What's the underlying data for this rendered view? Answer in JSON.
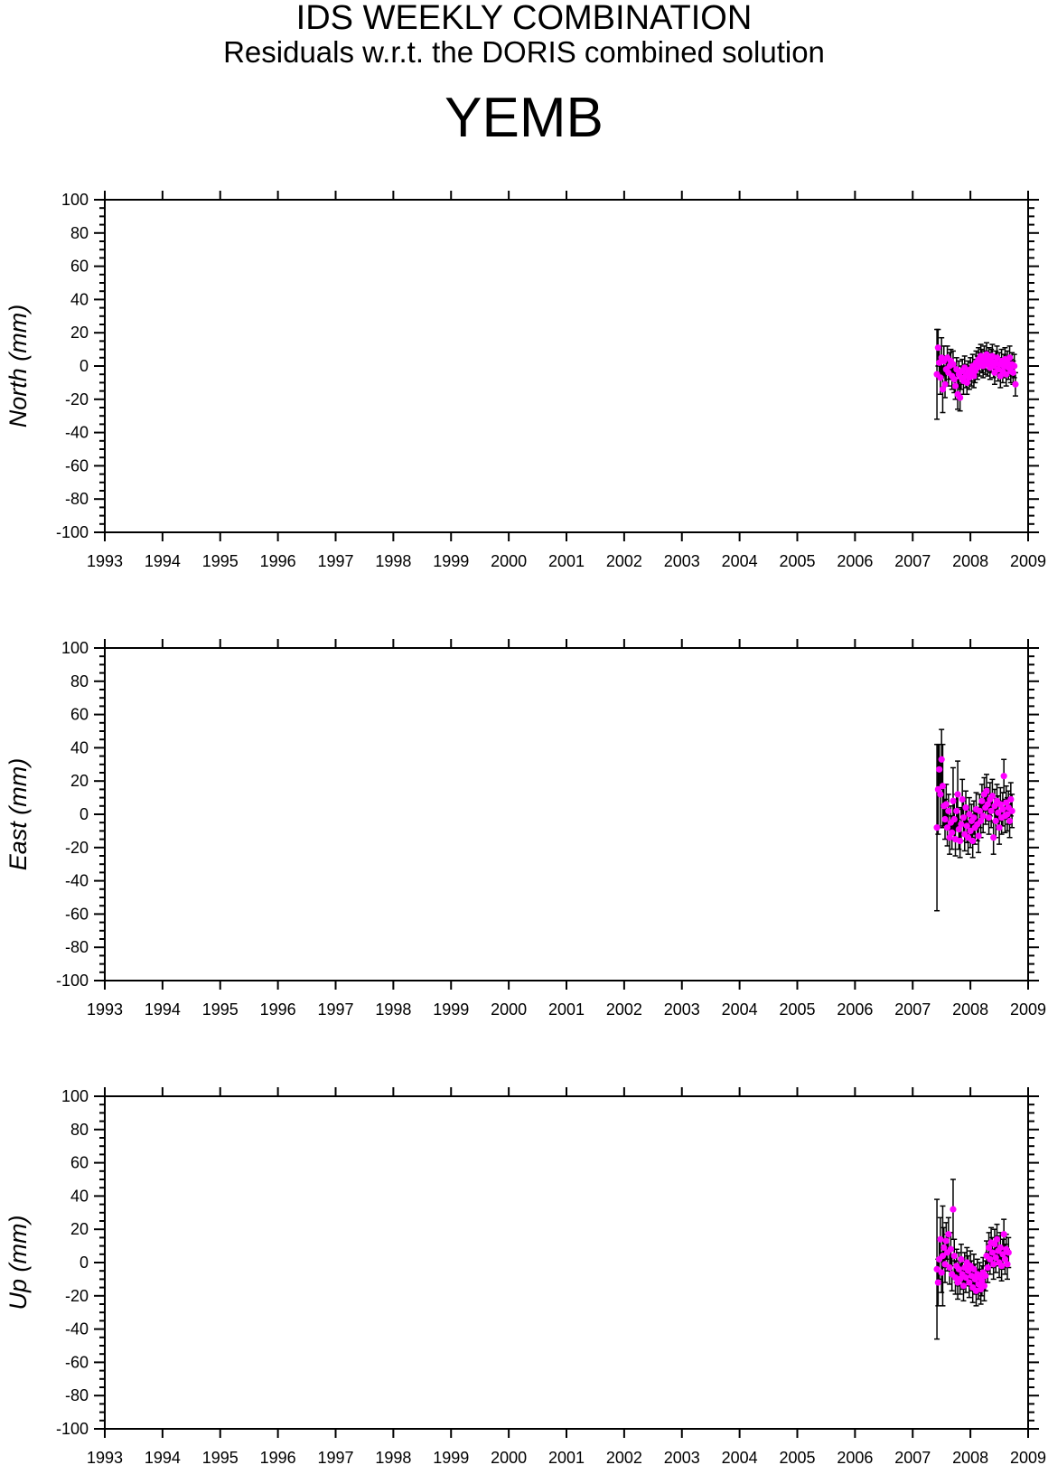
{
  "header": {
    "title": "IDS WEEKLY COMBINATION",
    "subtitle": "Residuals w.r.t. the DORIS combined solution",
    "station": "YEMB"
  },
  "colors": {
    "point": "#ff00ff",
    "errorbar": "#000000",
    "axis": "#000000"
  },
  "chart_data": [
    {
      "type": "scatter",
      "ylabel": "North (mm)",
      "xlim": [
        1993,
        2009
      ],
      "ylim": [
        -100,
        100
      ],
      "x_ticks": [
        "1993",
        "1994",
        "1995",
        "1996",
        "1997",
        "1998",
        "1999",
        "2000",
        "2001",
        "2002",
        "2003",
        "2004",
        "2005",
        "2006",
        "2007",
        "2008",
        "2009"
      ],
      "y_ticks": [
        "100",
        "80",
        "60",
        "40",
        "20",
        "0",
        "-20",
        "-40",
        "-60",
        "-80",
        "-100"
      ],
      "points": [
        {
          "x": 2007.42,
          "y": -5,
          "err": 27
        },
        {
          "x": 2007.44,
          "y": 11,
          "err": 11
        },
        {
          "x": 2007.46,
          "y": 2,
          "err": 9
        },
        {
          "x": 2007.48,
          "y": -7,
          "err": 10
        },
        {
          "x": 2007.5,
          "y": 5,
          "err": 12
        },
        {
          "x": 2007.52,
          "y": -14,
          "err": 14
        },
        {
          "x": 2007.54,
          "y": 3,
          "err": 9
        },
        {
          "x": 2007.56,
          "y": -11,
          "err": 8
        },
        {
          "x": 2007.58,
          "y": -2,
          "err": 8
        },
        {
          "x": 2007.6,
          "y": 5,
          "err": 7
        },
        {
          "x": 2007.62,
          "y": -4,
          "err": 8
        },
        {
          "x": 2007.64,
          "y": 0,
          "err": 8
        },
        {
          "x": 2007.66,
          "y": 3,
          "err": 7
        },
        {
          "x": 2007.68,
          "y": -6,
          "err": 8
        },
        {
          "x": 2007.7,
          "y": 1,
          "err": 8
        },
        {
          "x": 2007.72,
          "y": -8,
          "err": 8
        },
        {
          "x": 2007.74,
          "y": -12,
          "err": 8
        },
        {
          "x": 2007.76,
          "y": -2,
          "err": 7
        },
        {
          "x": 2007.78,
          "y": -17,
          "err": 9
        },
        {
          "x": 2007.8,
          "y": -5,
          "err": 8
        },
        {
          "x": 2007.82,
          "y": -19,
          "err": 8
        },
        {
          "x": 2007.84,
          "y": -7,
          "err": 7
        },
        {
          "x": 2007.86,
          "y": -3,
          "err": 7
        },
        {
          "x": 2007.88,
          "y": -9,
          "err": 8
        },
        {
          "x": 2007.9,
          "y": -1,
          "err": 7
        },
        {
          "x": 2007.92,
          "y": -6,
          "err": 7
        },
        {
          "x": 2007.94,
          "y": -10,
          "err": 7
        },
        {
          "x": 2007.96,
          "y": -4,
          "err": 7
        },
        {
          "x": 2007.98,
          "y": -7,
          "err": 7
        },
        {
          "x": 2008.0,
          "y": -2,
          "err": 7
        },
        {
          "x": 2008.02,
          "y": -5,
          "err": 7
        },
        {
          "x": 2008.04,
          "y": 0,
          "err": 7
        },
        {
          "x": 2008.06,
          "y": -6,
          "err": 7
        },
        {
          "x": 2008.08,
          "y": -3,
          "err": 7
        },
        {
          "x": 2008.1,
          "y": 2,
          "err": 7
        },
        {
          "x": 2008.12,
          "y": -1,
          "err": 7
        },
        {
          "x": 2008.14,
          "y": 4,
          "err": 7
        },
        {
          "x": 2008.16,
          "y": 1,
          "err": 7
        },
        {
          "x": 2008.18,
          "y": 6,
          "err": 7
        },
        {
          "x": 2008.2,
          "y": 3,
          "err": 7
        },
        {
          "x": 2008.22,
          "y": 0,
          "err": 7
        },
        {
          "x": 2008.24,
          "y": 5,
          "err": 7
        },
        {
          "x": 2008.26,
          "y": 2,
          "err": 7
        },
        {
          "x": 2008.28,
          "y": 7,
          "err": 7
        },
        {
          "x": 2008.3,
          "y": 1,
          "err": 7
        },
        {
          "x": 2008.32,
          "y": 4,
          "err": 7
        },
        {
          "x": 2008.34,
          "y": -1,
          "err": 7
        },
        {
          "x": 2008.36,
          "y": 3,
          "err": 7
        },
        {
          "x": 2008.38,
          "y": 6,
          "err": 7
        },
        {
          "x": 2008.4,
          "y": 0,
          "err": 7
        },
        {
          "x": 2008.42,
          "y": -4,
          "err": 7
        },
        {
          "x": 2008.44,
          "y": 2,
          "err": 7
        },
        {
          "x": 2008.46,
          "y": 5,
          "err": 7
        },
        {
          "x": 2008.48,
          "y": -2,
          "err": 7
        },
        {
          "x": 2008.5,
          "y": 1,
          "err": 7
        },
        {
          "x": 2008.52,
          "y": -6,
          "err": 7
        },
        {
          "x": 2008.54,
          "y": 3,
          "err": 7
        },
        {
          "x": 2008.56,
          "y": -3,
          "err": 7
        },
        {
          "x": 2008.58,
          "y": 0,
          "err": 7
        },
        {
          "x": 2008.6,
          "y": 4,
          "err": 7
        },
        {
          "x": 2008.62,
          "y": -5,
          "err": 7
        },
        {
          "x": 2008.64,
          "y": 2,
          "err": 7
        },
        {
          "x": 2008.66,
          "y": -1,
          "err": 7
        },
        {
          "x": 2008.68,
          "y": 5,
          "err": 7
        },
        {
          "x": 2008.7,
          "y": -3,
          "err": 7
        },
        {
          "x": 2008.72,
          "y": 1,
          "err": 7
        },
        {
          "x": 2008.74,
          "y": -4,
          "err": 7
        },
        {
          "x": 2008.76,
          "y": 0,
          "err": 7
        },
        {
          "x": 2008.78,
          "y": -11,
          "err": 7
        }
      ]
    },
    {
      "type": "scatter",
      "ylabel": "East (mm)",
      "xlim": [
        1993,
        2009
      ],
      "ylim": [
        -100,
        100
      ],
      "x_ticks": [
        "1993",
        "1994",
        "1995",
        "1996",
        "1997",
        "1998",
        "1999",
        "2000",
        "2001",
        "2002",
        "2003",
        "2004",
        "2005",
        "2006",
        "2007",
        "2008",
        "2009"
      ],
      "y_ticks": [
        "100",
        "80",
        "60",
        "40",
        "20",
        "0",
        "-20",
        "-40",
        "-60",
        "-80",
        "-100"
      ],
      "points": [
        {
          "x": 2007.42,
          "y": -8,
          "err": 50
        },
        {
          "x": 2007.44,
          "y": 15,
          "err": 27
        },
        {
          "x": 2007.46,
          "y": 27,
          "err": 15
        },
        {
          "x": 2007.48,
          "y": 12,
          "err": 20
        },
        {
          "x": 2007.5,
          "y": 33,
          "err": 18
        },
        {
          "x": 2007.52,
          "y": 17,
          "err": 25
        },
        {
          "x": 2007.54,
          "y": 5,
          "err": 12
        },
        {
          "x": 2007.56,
          "y": -3,
          "err": 12
        },
        {
          "x": 2007.58,
          "y": 6,
          "err": 12
        },
        {
          "x": 2007.6,
          "y": -8,
          "err": 11
        },
        {
          "x": 2007.62,
          "y": 2,
          "err": 10
        },
        {
          "x": 2007.64,
          "y": -14,
          "err": 10
        },
        {
          "x": 2007.66,
          "y": -5,
          "err": 10
        },
        {
          "x": 2007.68,
          "y": -11,
          "err": 10
        },
        {
          "x": 2007.7,
          "y": 8,
          "err": 20
        },
        {
          "x": 2007.72,
          "y": -3,
          "err": 12
        },
        {
          "x": 2007.74,
          "y": -15,
          "err": 10
        },
        {
          "x": 2007.76,
          "y": 2,
          "err": 10
        },
        {
          "x": 2007.78,
          "y": 12,
          "err": 20
        },
        {
          "x": 2007.8,
          "y": -9,
          "err": 12
        },
        {
          "x": 2007.82,
          "y": -16,
          "err": 10
        },
        {
          "x": 2007.84,
          "y": -6,
          "err": 10
        },
        {
          "x": 2007.86,
          "y": 9,
          "err": 12
        },
        {
          "x": 2007.88,
          "y": -2,
          "err": 10
        },
        {
          "x": 2007.9,
          "y": -12,
          "err": 10
        },
        {
          "x": 2007.92,
          "y": 4,
          "err": 10
        },
        {
          "x": 2007.94,
          "y": -7,
          "err": 10
        },
        {
          "x": 2007.96,
          "y": -14,
          "err": 10
        },
        {
          "x": 2007.98,
          "y": 0,
          "err": 10
        },
        {
          "x": 2008.0,
          "y": -10,
          "err": 10
        },
        {
          "x": 2008.02,
          "y": -4,
          "err": 10
        },
        {
          "x": 2008.04,
          "y": -16,
          "err": 10
        },
        {
          "x": 2008.06,
          "y": -2,
          "err": 10
        },
        {
          "x": 2008.08,
          "y": -8,
          "err": 10
        },
        {
          "x": 2008.1,
          "y": 3,
          "err": 10
        },
        {
          "x": 2008.12,
          "y": -6,
          "err": 10
        },
        {
          "x": 2008.14,
          "y": -13,
          "err": 10
        },
        {
          "x": 2008.16,
          "y": 2,
          "err": 10
        },
        {
          "x": 2008.18,
          "y": -4,
          "err": 10
        },
        {
          "x": 2008.2,
          "y": 8,
          "err": 10
        },
        {
          "x": 2008.22,
          "y": -1,
          "err": 10
        },
        {
          "x": 2008.24,
          "y": 12,
          "err": 10
        },
        {
          "x": 2008.26,
          "y": 4,
          "err": 10
        },
        {
          "x": 2008.28,
          "y": 14,
          "err": 10
        },
        {
          "x": 2008.3,
          "y": 6,
          "err": 10
        },
        {
          "x": 2008.32,
          "y": -2,
          "err": 10
        },
        {
          "x": 2008.34,
          "y": 9,
          "err": 10
        },
        {
          "x": 2008.36,
          "y": 2,
          "err": 10
        },
        {
          "x": 2008.38,
          "y": 11,
          "err": 10
        },
        {
          "x": 2008.4,
          "y": -14,
          "err": 10
        },
        {
          "x": 2008.42,
          "y": 5,
          "err": 10
        },
        {
          "x": 2008.44,
          "y": -4,
          "err": 10
        },
        {
          "x": 2008.46,
          "y": 8,
          "err": 10
        },
        {
          "x": 2008.48,
          "y": 1,
          "err": 10
        },
        {
          "x": 2008.5,
          "y": -8,
          "err": 10
        },
        {
          "x": 2008.52,
          "y": 6,
          "err": 10
        },
        {
          "x": 2008.54,
          "y": -2,
          "err": 10
        },
        {
          "x": 2008.56,
          "y": 3,
          "err": 10
        },
        {
          "x": 2008.58,
          "y": 23,
          "err": 10
        },
        {
          "x": 2008.6,
          "y": -1,
          "err": 10
        },
        {
          "x": 2008.62,
          "y": 7,
          "err": 10
        },
        {
          "x": 2008.64,
          "y": 0,
          "err": 10
        },
        {
          "x": 2008.66,
          "y": 4,
          "err": 10
        },
        {
          "x": 2008.68,
          "y": -4,
          "err": 10
        },
        {
          "x": 2008.7,
          "y": 9,
          "err": 10
        },
        {
          "x": 2008.72,
          "y": 2,
          "err": 10
        }
      ]
    },
    {
      "type": "scatter",
      "ylabel": "Up (mm)",
      "xlim": [
        1993,
        2009
      ],
      "ylim": [
        -100,
        100
      ],
      "x_ticks": [
        "1993",
        "1994",
        "1995",
        "1996",
        "1997",
        "1998",
        "1999",
        "2000",
        "2001",
        "2002",
        "2003",
        "2004",
        "2005",
        "2006",
        "2007",
        "2008",
        "2009"
      ],
      "y_ticks": [
        "100",
        "80",
        "60",
        "40",
        "20",
        "0",
        "-20",
        "-40",
        "-60",
        "-80",
        "-100"
      ],
      "points": [
        {
          "x": 2007.42,
          "y": -4,
          "err": 42
        },
        {
          "x": 2007.44,
          "y": -12,
          "err": 14
        },
        {
          "x": 2007.46,
          "y": 2,
          "err": 12
        },
        {
          "x": 2007.48,
          "y": 14,
          "err": 13
        },
        {
          "x": 2007.5,
          "y": -6,
          "err": 12
        },
        {
          "x": 2007.52,
          "y": 4,
          "err": 30
        },
        {
          "x": 2007.54,
          "y": 9,
          "err": 12
        },
        {
          "x": 2007.56,
          "y": -1,
          "err": 11
        },
        {
          "x": 2007.58,
          "y": 13,
          "err": 11
        },
        {
          "x": 2007.6,
          "y": 6,
          "err": 11
        },
        {
          "x": 2007.62,
          "y": 17,
          "err": 10
        },
        {
          "x": 2007.64,
          "y": -3,
          "err": 10
        },
        {
          "x": 2007.66,
          "y": 8,
          "err": 10
        },
        {
          "x": 2007.68,
          "y": -7,
          "err": 10
        },
        {
          "x": 2007.7,
          "y": 32,
          "err": 18
        },
        {
          "x": 2007.72,
          "y": 4,
          "err": 10
        },
        {
          "x": 2007.74,
          "y": -9,
          "err": 10
        },
        {
          "x": 2007.76,
          "y": -2,
          "err": 10
        },
        {
          "x": 2007.78,
          "y": -12,
          "err": 10
        },
        {
          "x": 2007.8,
          "y": -4,
          "err": 10
        },
        {
          "x": 2007.82,
          "y": -10,
          "err": 9
        },
        {
          "x": 2007.84,
          "y": 2,
          "err": 9
        },
        {
          "x": 2007.86,
          "y": -7,
          "err": 9
        },
        {
          "x": 2007.88,
          "y": -14,
          "err": 9
        },
        {
          "x": 2007.9,
          "y": -3,
          "err": 9
        },
        {
          "x": 2007.92,
          "y": -9,
          "err": 9
        },
        {
          "x": 2007.94,
          "y": 0,
          "err": 9
        },
        {
          "x": 2007.96,
          "y": -5,
          "err": 9
        },
        {
          "x": 2007.98,
          "y": -12,
          "err": 9
        },
        {
          "x": 2008.0,
          "y": -2,
          "err": 9
        },
        {
          "x": 2008.02,
          "y": -8,
          "err": 9
        },
        {
          "x": 2008.04,
          "y": -15,
          "err": 9
        },
        {
          "x": 2008.06,
          "y": -4,
          "err": 9
        },
        {
          "x": 2008.08,
          "y": -10,
          "err": 9
        },
        {
          "x": 2008.1,
          "y": -17,
          "err": 9
        },
        {
          "x": 2008.12,
          "y": -7,
          "err": 9
        },
        {
          "x": 2008.14,
          "y": -13,
          "err": 9
        },
        {
          "x": 2008.16,
          "y": -9,
          "err": 9
        },
        {
          "x": 2008.18,
          "y": -16,
          "err": 9
        },
        {
          "x": 2008.2,
          "y": -11,
          "err": 9
        },
        {
          "x": 2008.22,
          "y": -6,
          "err": 9
        },
        {
          "x": 2008.24,
          "y": -14,
          "err": 9
        },
        {
          "x": 2008.26,
          "y": -8,
          "err": 9
        },
        {
          "x": 2008.28,
          "y": 4,
          "err": 9
        },
        {
          "x": 2008.3,
          "y": -3,
          "err": 9
        },
        {
          "x": 2008.32,
          "y": 9,
          "err": 9
        },
        {
          "x": 2008.34,
          "y": 2,
          "err": 9
        },
        {
          "x": 2008.36,
          "y": 12,
          "err": 9
        },
        {
          "x": 2008.38,
          "y": 6,
          "err": 9
        },
        {
          "x": 2008.4,
          "y": -1,
          "err": 9
        },
        {
          "x": 2008.42,
          "y": 11,
          "err": 9
        },
        {
          "x": 2008.44,
          "y": 3,
          "err": 9
        },
        {
          "x": 2008.46,
          "y": 14,
          "err": 9
        },
        {
          "x": 2008.48,
          "y": 7,
          "err": 9
        },
        {
          "x": 2008.5,
          "y": 0,
          "err": 9
        },
        {
          "x": 2008.52,
          "y": 9,
          "err": 9
        },
        {
          "x": 2008.54,
          "y": -2,
          "err": 9
        },
        {
          "x": 2008.56,
          "y": 5,
          "err": 9
        },
        {
          "x": 2008.58,
          "y": 17,
          "err": 9
        },
        {
          "x": 2008.6,
          "y": 2,
          "err": 9
        },
        {
          "x": 2008.62,
          "y": 8,
          "err": 9
        },
        {
          "x": 2008.64,
          "y": -1,
          "err": 9
        },
        {
          "x": 2008.66,
          "y": 6,
          "err": 9
        }
      ]
    }
  ]
}
